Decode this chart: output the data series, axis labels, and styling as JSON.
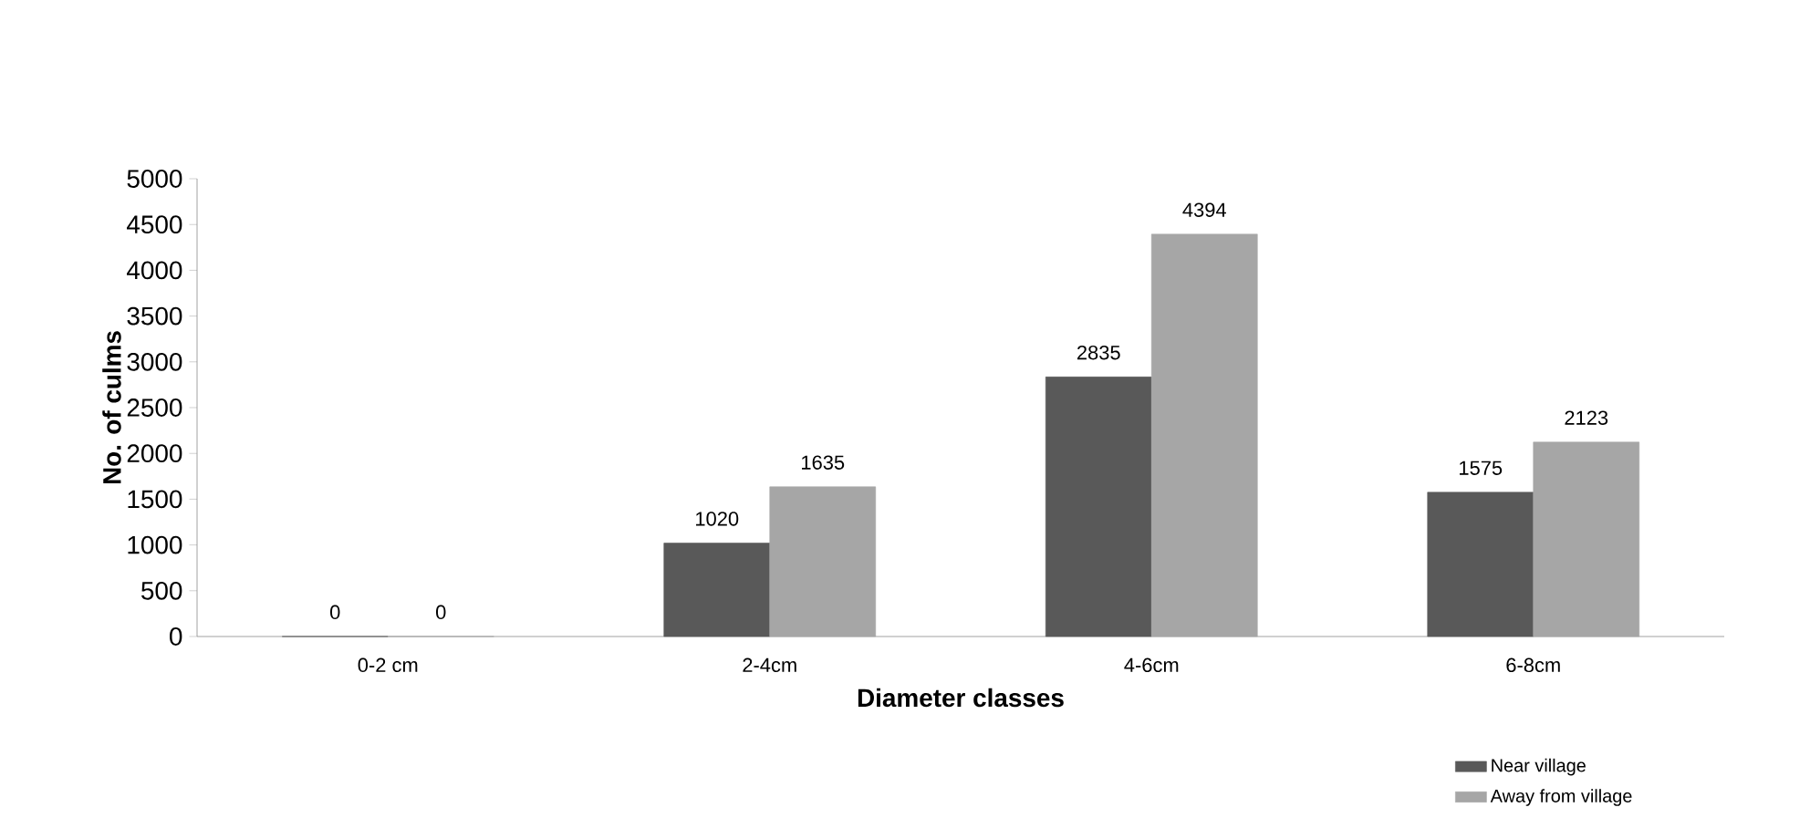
{
  "chart_data": {
    "type": "bar",
    "xlabel": "Diameter classes",
    "ylabel": "No. of culms",
    "categories": [
      "0-2 cm",
      "2-4cm",
      "4-6cm",
      "6-8cm"
    ],
    "series": [
      {
        "name": "Near village",
        "color": "#595959",
        "values": [
          0,
          1020,
          2835,
          1575
        ]
      },
      {
        "name": "Away from village",
        "color": "#a6a6a6",
        "values": [
          0,
          1635,
          4394,
          2123
        ]
      }
    ],
    "ylim": [
      0,
      5000
    ],
    "yticks": [
      0,
      500,
      1000,
      1500,
      2000,
      2500,
      3000,
      3500,
      4000,
      4500,
      5000
    ],
    "data_labels": true,
    "grid": false,
    "legend": "bottom right"
  }
}
